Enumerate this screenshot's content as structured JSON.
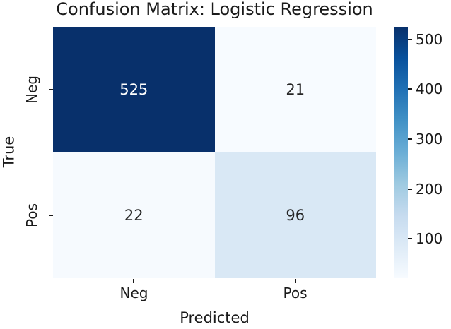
{
  "figure": {
    "background": "#ffffff",
    "text_color": "#1a1a1a"
  },
  "chart_data": {
    "type": "heatmap",
    "title": "Confusion Matrix: Logistic Regression",
    "xlabel": "Predicted",
    "ylabel": "True",
    "x_categories": [
      "Neg",
      "Pos"
    ],
    "y_categories": [
      "Neg",
      "Pos"
    ],
    "values": [
      [
        525,
        21
      ],
      [
        22,
        96
      ]
    ],
    "cell_colors": [
      [
        "#08306b",
        "#f7fbff"
      ],
      [
        "#f6fafe",
        "#d9e8f5"
      ]
    ],
    "cell_text_colors": [
      [
        "#ffffff",
        "#262626"
      ],
      [
        "#262626",
        "#262626"
      ]
    ],
    "colormap": "Blues",
    "grid": false,
    "legend_position": "right-colorbar",
    "colorbar": {
      "vmin": 21,
      "vmax": 525,
      "tick_labels": [
        "500",
        "400",
        "300",
        "200",
        "100"
      ],
      "gradient_stops_bottom_to_top": [
        "#f7fbff",
        "#deebf7",
        "#c6dbef",
        "#9ecae1",
        "#6baed6",
        "#4292c6",
        "#2171b5",
        "#08519c",
        "#08306b"
      ]
    }
  }
}
